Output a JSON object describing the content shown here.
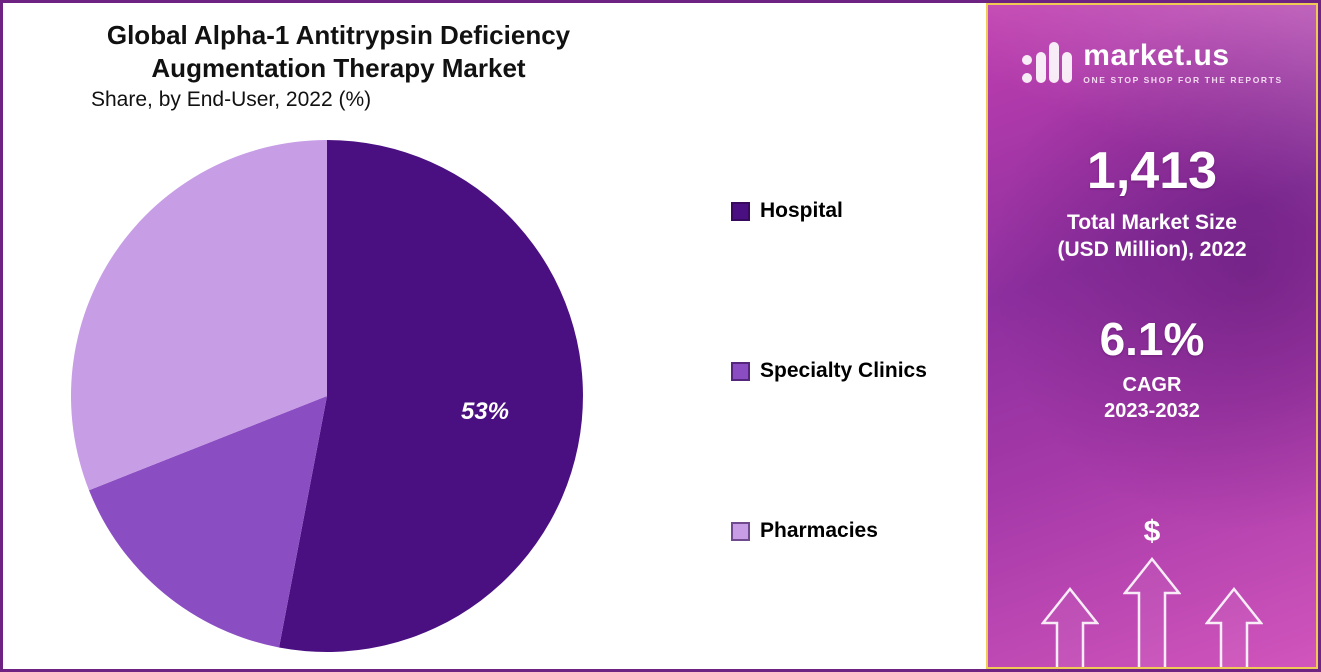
{
  "chart_data": {
    "type": "pie",
    "title_line1": "Global Alpha-1 Antitrypsin Deficiency",
    "title_line2": "Augmentation Therapy Market",
    "subtitle": "Share, by End-User, 2022 (%)",
    "start_angle_deg": 0,
    "direction": "clockwise",
    "legend_position": "right",
    "slices": [
      {
        "label": "Hospital",
        "value": 53,
        "color": "#4a1082",
        "data_label": "53%"
      },
      {
        "label": "Specialty Clinics",
        "value": 16,
        "color": "#8b4ec2",
        "data_label": ""
      },
      {
        "label": "Pharmacies",
        "value": 31,
        "color": "#c79de6",
        "data_label": ""
      }
    ]
  },
  "side_panel": {
    "logo": {
      "brand": "market.us",
      "tagline": "ONE STOP SHOP FOR THE REPORTS"
    },
    "market_size": {
      "value": "1,413",
      "label_line1": "Total Market Size",
      "label_line2": "(USD Million), 2022"
    },
    "cagr": {
      "value": "6.1%",
      "label_line1": "CAGR",
      "label_line2": "2023-2032"
    },
    "currency_symbol": "$"
  },
  "colors": {
    "outer_border": "#6e2382",
    "panel_border": "#efcb55",
    "panel_gradient_start": "#c13fb0",
    "panel_gradient_end": "#d155bc",
    "title_text": "#111111",
    "pie_label_text": "#ffffff"
  }
}
